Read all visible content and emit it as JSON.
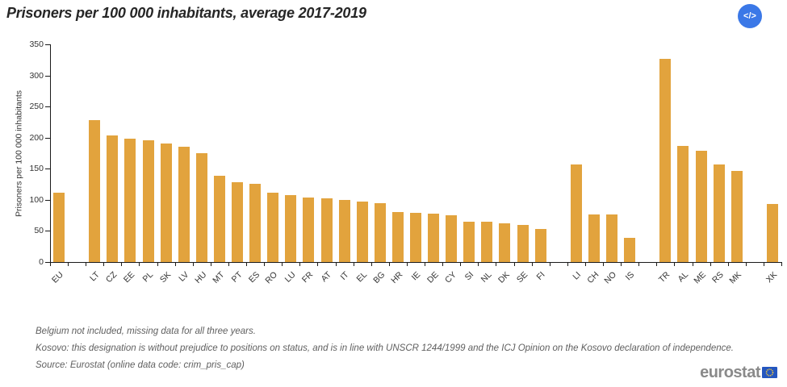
{
  "header": {
    "title": "Prisoners per 100 000 inhabitants, average 2017-2019",
    "embed_button_icon": "</>"
  },
  "chart_data": {
    "type": "bar",
    "title": "Prisoners per 100 000 inhabitants, average 2017-2019",
    "xlabel": "",
    "ylabel": "Prisoners per 100 000 inhabitants",
    "ylim": [
      0,
      350
    ],
    "ytick_step": 50,
    "grid": false,
    "legend": "none",
    "bar_color": "#e2a33d",
    "groups": [
      {
        "categories": [
          "EU"
        ],
        "values": [
          112
        ]
      },
      {
        "categories": [
          "LT",
          "CZ",
          "EE",
          "PL",
          "SK",
          "LV",
          "HU",
          "MT",
          "PT",
          "ES",
          "RO",
          "LU",
          "FR",
          "AT",
          "IT",
          "EL",
          "BG",
          "HR",
          "IE",
          "DE",
          "CY",
          "SI",
          "NL",
          "DK",
          "SE",
          "FI"
        ],
        "values": [
          228,
          204,
          198,
          196,
          190,
          186,
          175,
          139,
          128,
          126,
          111,
          108,
          104,
          102,
          100,
          97,
          94,
          81,
          79,
          78,
          75,
          65,
          65,
          62,
          60,
          53
        ]
      },
      {
        "categories": [
          "LI",
          "CH",
          "NO",
          "IS"
        ],
        "values": [
          157,
          77,
          76,
          39
        ]
      },
      {
        "categories": [
          "TR",
          "AL",
          "ME",
          "RS",
          "MK"
        ],
        "values": [
          327,
          187,
          179,
          157,
          146
        ]
      },
      {
        "categories": [
          "XK"
        ],
        "values": [
          93
        ]
      }
    ]
  },
  "footnotes": [
    "Belgium not included, missing data for all three years.",
    "Kosovo: this designation is without prejudice to positions on status, and is in line with UNSCR 1244/1999 and the ICJ Opinion on the Kosovo declaration of independence.",
    "Source: Eurostat (online data code: crim_pris_cap)"
  ],
  "footer": {
    "logo_text": "eurostat"
  },
  "colors": {
    "bar": "#e2a33d",
    "axis": "#1a1a1a",
    "embed_button": "#3b78e7",
    "logo_gray": "#8a8a8a",
    "logo_blue": "#2456bf",
    "logo_stars": "#f2c93e"
  }
}
